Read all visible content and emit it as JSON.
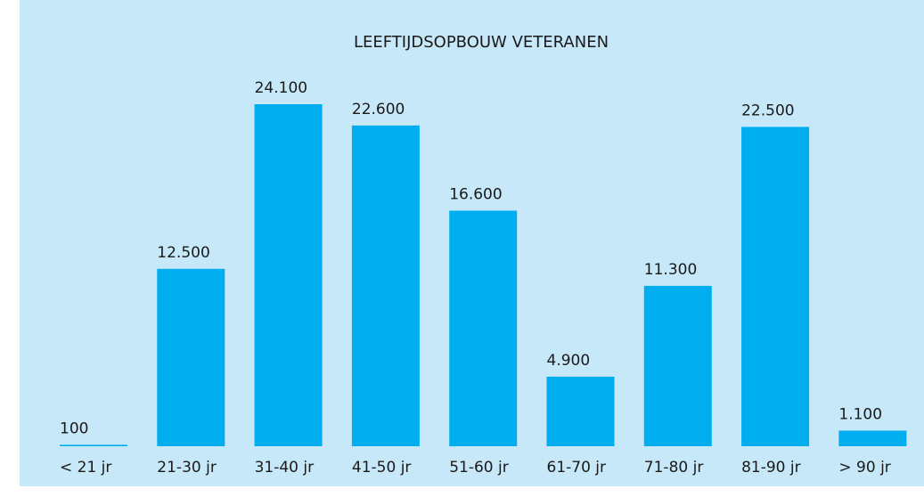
{
  "chart_data": {
    "type": "bar",
    "title": "LEEFTIJDSOPBOUW VETERANEN",
    "categories": [
      "< 21 jr",
      "21-30 jr",
      "31-40 jr",
      "41-50 jr",
      "51-60 jr",
      "61-70 jr",
      "71-80 jr",
      "81-90 jr",
      "> 90 jr"
    ],
    "values": [
      100,
      12500,
      24100,
      22600,
      16600,
      4900,
      11300,
      22500,
      1100
    ],
    "value_labels": [
      "100",
      "12.500",
      "24.100",
      "22.600",
      "16.600",
      "4.900",
      "11.300",
      "22.500",
      "1.100"
    ],
    "color": "#00aeef"
  }
}
